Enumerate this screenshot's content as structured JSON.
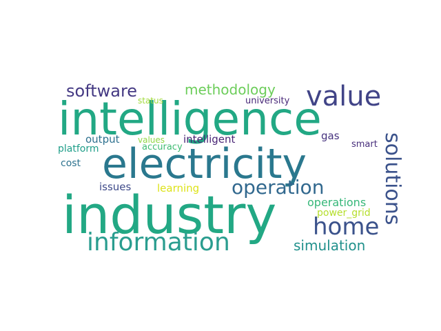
{
  "words": [
    {
      "text": "intelligence",
      "color": "#22a884"
    },
    {
      "text": "electricity",
      "color": "#2a788e"
    },
    {
      "text": "industry",
      "color": "#22a884"
    },
    {
      "text": "information",
      "color": "#2a9d8f"
    },
    {
      "text": "value",
      "color": "#414487"
    },
    {
      "text": "software",
      "color": "#443983"
    },
    {
      "text": "methodology",
      "color": "#6ccd5a"
    },
    {
      "text": "operation",
      "color": "#31688e"
    },
    {
      "text": "home",
      "color": "#3b528b"
    },
    {
      "text": "solutions",
      "color": "#3b528b"
    },
    {
      "text": "simulation",
      "color": "#21918c"
    },
    {
      "text": "operations",
      "color": "#35b779"
    },
    {
      "text": "power_grid",
      "color": "#b5de2b"
    },
    {
      "text": "learning",
      "color": "#dde318"
    },
    {
      "text": "issues",
      "color": "#3e4a89"
    },
    {
      "text": "cost",
      "color": "#2c728e"
    },
    {
      "text": "platform",
      "color": "#1f9e89"
    },
    {
      "text": "output",
      "color": "#2d708e"
    },
    {
      "text": "values",
      "color": "#8fd744"
    },
    {
      "text": "accuracy",
      "color": "#3fbc73"
    },
    {
      "text": "intelligent",
      "color": "#482475"
    },
    {
      "text": "status",
      "color": "#a0da39"
    },
    {
      "text": "university",
      "color": "#482878"
    },
    {
      "text": "gas",
      "color": "#46327e"
    },
    {
      "text": "smart",
      "color": "#472d7b"
    }
  ]
}
